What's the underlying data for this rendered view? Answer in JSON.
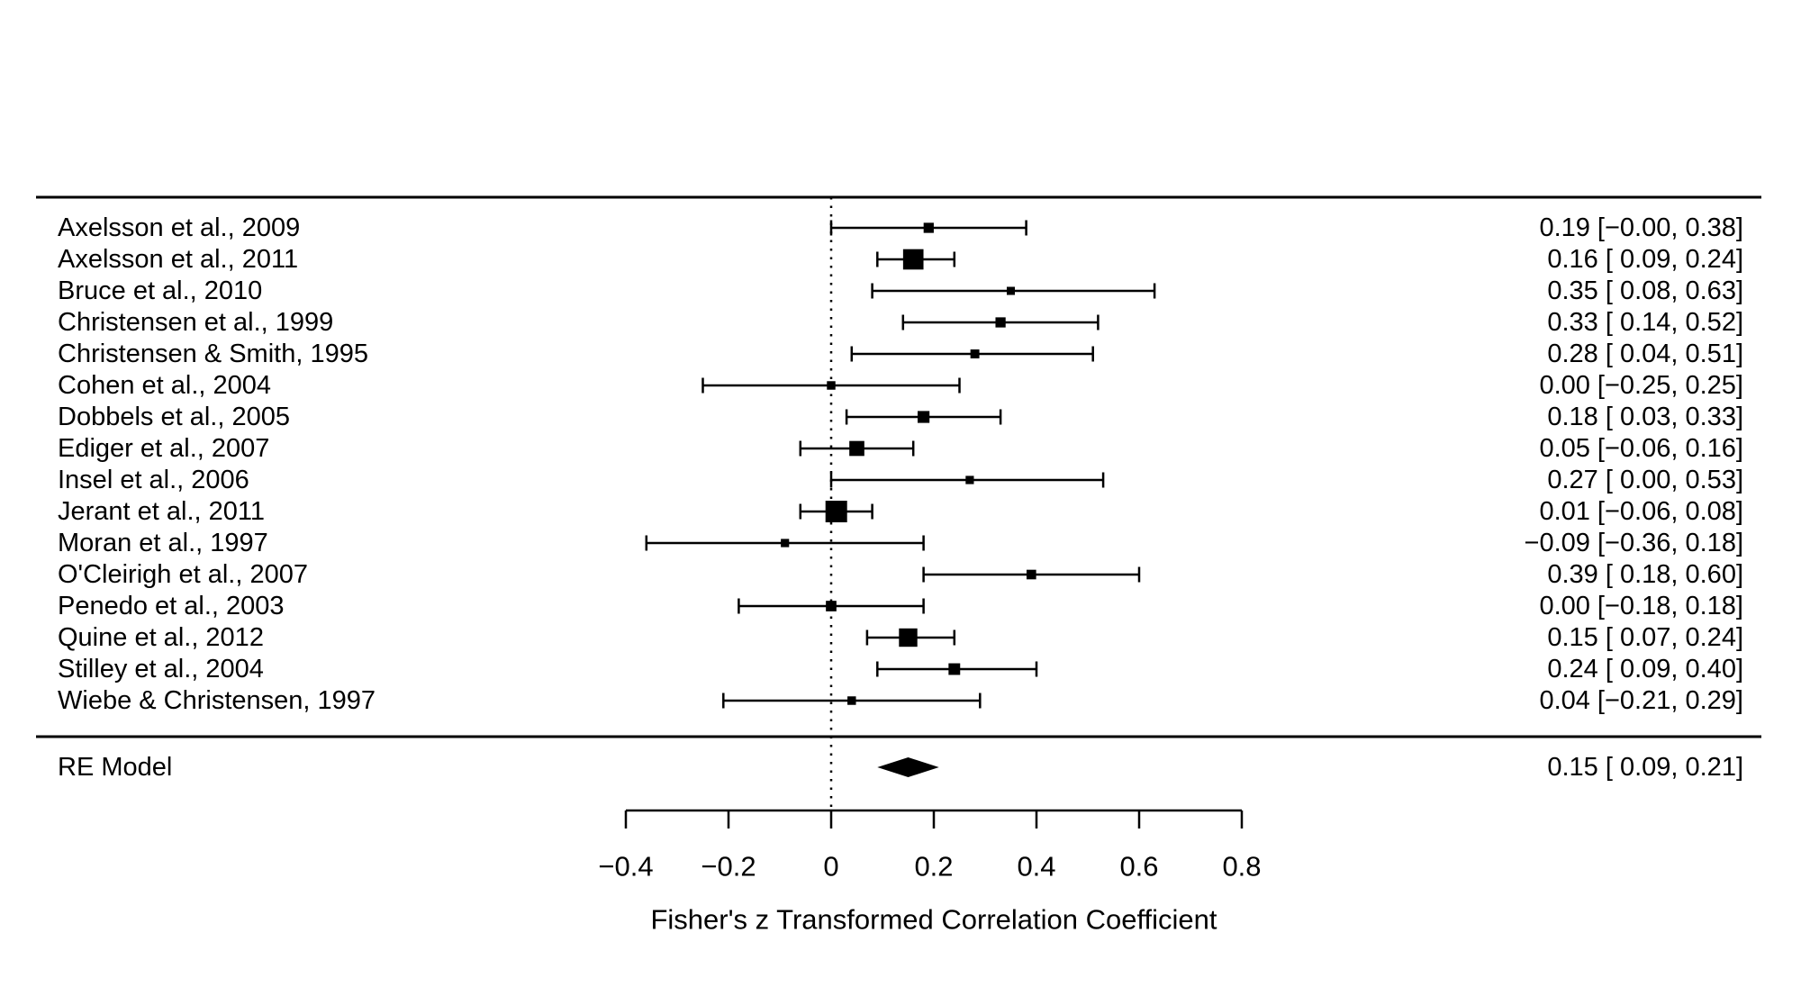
{
  "chart_data": {
    "type": "forest",
    "xlabel": "Fisher's z Transformed Correlation Coefficient",
    "xlim": [
      -0.4,
      0.8
    ],
    "x_ticks": [
      -0.4,
      -0.2,
      0,
      0.2,
      0.4,
      0.6,
      0.8
    ],
    "x_tick_labels": [
      "−0.4",
      "−0.2",
      "0",
      "0.2",
      "0.4",
      "0.6",
      "0.8"
    ],
    "zero_line": 0,
    "grid": false,
    "studies": [
      {
        "label": "Axelsson et al., 2009",
        "estimate": 0.19,
        "ci_lower": -0.0,
        "ci_upper": 0.38,
        "weight": 0.15,
        "annotation": "0.19 [−0.00, 0.38]"
      },
      {
        "label": "Axelsson et al., 2011",
        "estimate": 0.16,
        "ci_lower": 0.09,
        "ci_upper": 0.24,
        "weight": 0.91,
        "annotation": "0.16 [ 0.09, 0.24]"
      },
      {
        "label": "Bruce et al., 2010",
        "estimate": 0.35,
        "ci_lower": 0.08,
        "ci_upper": 0.63,
        "weight": 0.0,
        "annotation": "0.35 [ 0.08, 0.63]"
      },
      {
        "label": "Christensen et al., 1999",
        "estimate": 0.33,
        "ci_lower": 0.14,
        "ci_upper": 0.52,
        "weight": 0.15,
        "annotation": "0.33 [ 0.14, 0.52]"
      },
      {
        "label": "Christensen & Smith, 1995",
        "estimate": 0.28,
        "ci_lower": 0.04,
        "ci_upper": 0.51,
        "weight": 0.06,
        "annotation": "0.28 [ 0.04, 0.51]"
      },
      {
        "label": "Cohen et al., 2004",
        "estimate": 0.0,
        "ci_lower": -0.25,
        "ci_upper": 0.25,
        "weight": 0.03,
        "annotation": "0.00 [−0.25, 0.25]"
      },
      {
        "label": "Dobbels et al., 2005",
        "estimate": 0.18,
        "ci_lower": 0.03,
        "ci_upper": 0.33,
        "weight": 0.28,
        "annotation": "0.18 [ 0.03, 0.33]"
      },
      {
        "label": "Ediger et al., 2007",
        "estimate": 0.05,
        "ci_lower": -0.06,
        "ci_upper": 0.16,
        "weight": 0.51,
        "annotation": "0.05 [−0.06, 0.16]"
      },
      {
        "label": "Insel et al., 2006",
        "estimate": 0.27,
        "ci_lower": 0.0,
        "ci_upper": 0.53,
        "weight": 0.01,
        "annotation": "0.27 [ 0.00, 0.53]"
      },
      {
        "label": "Jerant et al., 2011",
        "estimate": 0.01,
        "ci_lower": -0.06,
        "ci_upper": 0.08,
        "weight": 1.0,
        "annotation": "0.01 [−0.06, 0.08]"
      },
      {
        "label": "Moran et al., 1997",
        "estimate": -0.09,
        "ci_lower": -0.36,
        "ci_upper": 0.18,
        "weight": 0.01,
        "annotation": "−0.09 [−0.36, 0.18]"
      },
      {
        "label": "O'Cleirigh et al., 2007",
        "estimate": 0.39,
        "ci_lower": 0.18,
        "ci_upper": 0.6,
        "weight": 0.11,
        "annotation": "0.39 [ 0.18, 0.60]"
      },
      {
        "label": "Penedo et al., 2003",
        "estimate": 0.0,
        "ci_lower": -0.18,
        "ci_upper": 0.18,
        "weight": 0.18,
        "annotation": "0.00 [−0.18, 0.18]"
      },
      {
        "label": "Quine et al., 2012",
        "estimate": 0.15,
        "ci_lower": 0.07,
        "ci_upper": 0.24,
        "weight": 0.76,
        "annotation": "0.15 [ 0.07, 0.24]"
      },
      {
        "label": "Stilley et al., 2004",
        "estimate": 0.24,
        "ci_lower": 0.09,
        "ci_upper": 0.4,
        "weight": 0.26,
        "annotation": "0.24 [ 0.09, 0.40]"
      },
      {
        "label": "Wiebe & Christensen, 1997",
        "estimate": 0.04,
        "ci_lower": -0.21,
        "ci_upper": 0.29,
        "weight": 0.03,
        "annotation": "0.04 [−0.21, 0.29]"
      }
    ],
    "summary": {
      "label": "RE Model",
      "estimate": 0.15,
      "ci_lower": 0.09,
      "ci_upper": 0.21,
      "annotation": "0.15 [ 0.09, 0.21]"
    }
  },
  "colors": {
    "foreground": "#000000",
    "background": "#ffffff"
  }
}
